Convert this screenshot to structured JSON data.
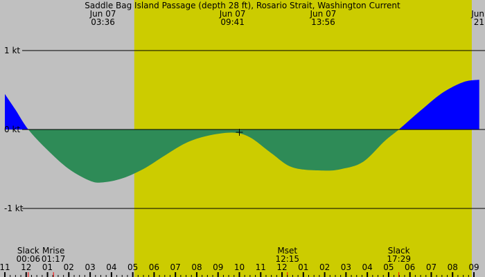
{
  "chart_data": {
    "type": "area",
    "title": "Saddle Bag Island Passage (depth 28 ft), Rosario Strait, Washington Current",
    "xlabel": "",
    "ylabel": "",
    "x_unit": "hour of day, Jun 07",
    "xlim": [
      -1.0,
      21.25
    ],
    "ylim": [
      -1.87,
      1.6
    ],
    "colors": {
      "background_night": "#c0c0c0",
      "daylight": "#cccc00",
      "flood": "#0000ff",
      "ebb": "#2e8b57",
      "event_tick": "#ff0000"
    },
    "daylight": [
      5.07,
      20.9
    ],
    "gridlines": [
      {
        "value": 1,
        "label": "1 kt"
      },
      {
        "value": 0,
        "label": "0 kt"
      },
      {
        "value": -1,
        "label": "-1 kt"
      }
    ],
    "x_ticks": [
      {
        "hour": -1,
        "label": "11"
      },
      {
        "hour": 0,
        "label": "12"
      },
      {
        "hour": 1,
        "label": "01"
      },
      {
        "hour": 2,
        "label": "02"
      },
      {
        "hour": 3,
        "label": "03"
      },
      {
        "hour": 4,
        "label": "04"
      },
      {
        "hour": 5,
        "label": "05"
      },
      {
        "hour": 6,
        "label": "06"
      },
      {
        "hour": 7,
        "label": "07"
      },
      {
        "hour": 8,
        "label": "08"
      },
      {
        "hour": 9,
        "label": "09"
      },
      {
        "hour": 10,
        "label": "10"
      },
      {
        "hour": 11,
        "label": "11"
      },
      {
        "hour": 12,
        "label": "12"
      },
      {
        "hour": 13,
        "label": "01"
      },
      {
        "hour": 14,
        "label": "02"
      },
      {
        "hour": 15,
        "label": "03"
      },
      {
        "hour": 16,
        "label": "04"
      },
      {
        "hour": 17,
        "label": "05"
      },
      {
        "hour": 18,
        "label": "06"
      },
      {
        "hour": 19,
        "label": "07"
      },
      {
        "hour": 20,
        "label": "08"
      },
      {
        "hour": 21,
        "label": "09"
      }
    ],
    "top_events": [
      {
        "hour": 3.6,
        "date": "Jun 07",
        "time": "03:36"
      },
      {
        "hour": 9.68,
        "date": "Jun 07",
        "time": "09:41"
      },
      {
        "hour": 13.93,
        "date": "Jun 07",
        "time": "13:56"
      },
      {
        "hour": 21.2,
        "date": "Jun",
        "time": "21"
      }
    ],
    "bottom_events": [
      {
        "hour": 0.1,
        "name": "Slack",
        "time": "00:06"
      },
      {
        "hour": 1.28,
        "name": "Mrise",
        "time": "01:17"
      },
      {
        "hour": 12.25,
        "name": "Mset",
        "time": "12:15"
      },
      {
        "hour": 17.48,
        "name": "Slack",
        "time": "17:29"
      }
    ],
    "current_marker": {
      "hour": 10.0,
      "value": 0.0
    },
    "current_series": [
      {
        "hour": -1.0,
        "kt": 0.45
      },
      {
        "hour": -0.5,
        "kt": 0.25
      },
      {
        "hour": 0.1,
        "kt": 0.0
      },
      {
        "hour": 1.0,
        "kt": -0.26
      },
      {
        "hour": 2.0,
        "kt": -0.5
      },
      {
        "hour": 3.0,
        "kt": -0.65
      },
      {
        "hour": 3.6,
        "kt": -0.67
      },
      {
        "hour": 4.5,
        "kt": -0.62
      },
      {
        "hour": 5.5,
        "kt": -0.5
      },
      {
        "hour": 6.5,
        "kt": -0.33
      },
      {
        "hour": 7.5,
        "kt": -0.17
      },
      {
        "hour": 8.5,
        "kt": -0.08
      },
      {
        "hour": 9.68,
        "kt": -0.04
      },
      {
        "hour": 10.5,
        "kt": -0.1
      },
      {
        "hour": 11.5,
        "kt": -0.3
      },
      {
        "hour": 12.5,
        "kt": -0.48
      },
      {
        "hour": 13.93,
        "kt": -0.52
      },
      {
        "hour": 14.8,
        "kt": -0.5
      },
      {
        "hour": 15.8,
        "kt": -0.41
      },
      {
        "hour": 16.8,
        "kt": -0.15
      },
      {
        "hour": 17.48,
        "kt": 0.0
      },
      {
        "hour": 18.5,
        "kt": 0.24
      },
      {
        "hour": 19.5,
        "kt": 0.46
      },
      {
        "hour": 20.5,
        "kt": 0.6
      },
      {
        "hour": 21.25,
        "kt": 0.63
      }
    ]
  }
}
